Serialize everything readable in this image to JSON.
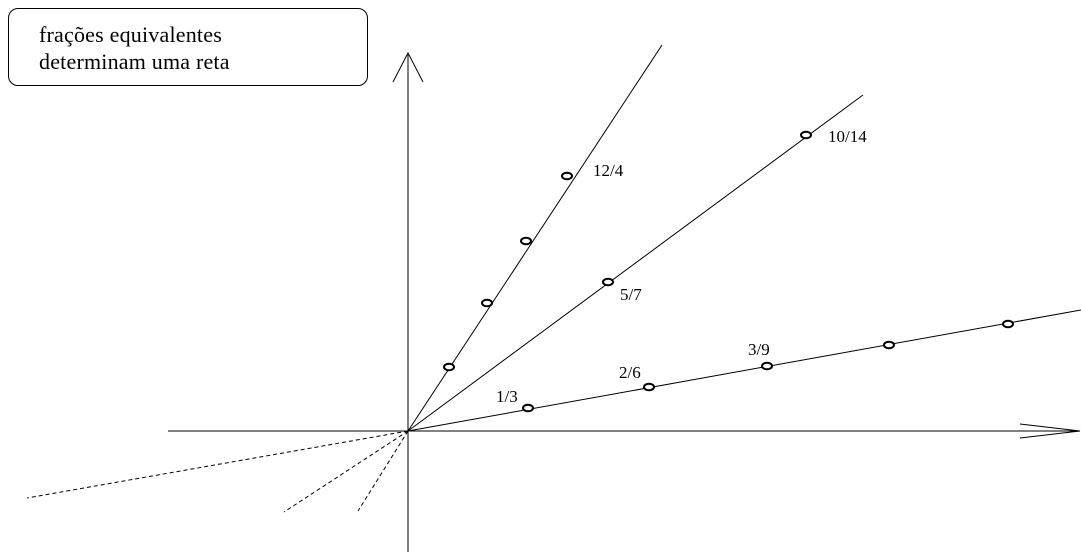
{
  "title": {
    "line1": "frações equivalentes",
    "line2": "determinam uma reta"
  },
  "colors": {
    "ink": "#000000",
    "background": "#ffffff"
  },
  "lines": [
    {
      "id": "slope-3",
      "fraction_points": [
        {
          "num": 3,
          "den": 1,
          "label": ""
        },
        {
          "num": 6,
          "den": 2,
          "label": ""
        },
        {
          "num": 9,
          "den": 3,
          "label": ""
        },
        {
          "num": 12,
          "den": 4,
          "label": "12/4"
        }
      ]
    },
    {
      "id": "slope-5-7",
      "fraction_points": [
        {
          "num": 5,
          "den": 7,
          "label": "5/7"
        },
        {
          "num": 10,
          "den": 14,
          "label": "10/14"
        }
      ]
    },
    {
      "id": "slope-1-3",
      "fraction_points": [
        {
          "num": 1,
          "den": 3,
          "label": "1/3"
        },
        {
          "num": 2,
          "den": 6,
          "label": "2/6"
        },
        {
          "num": 3,
          "den": 9,
          "label": "3/9"
        },
        {
          "num": 4,
          "den": 12,
          "label": ""
        },
        {
          "num": 5,
          "den": 15,
          "label": ""
        }
      ]
    }
  ],
  "dashed_lines_count": 3
}
